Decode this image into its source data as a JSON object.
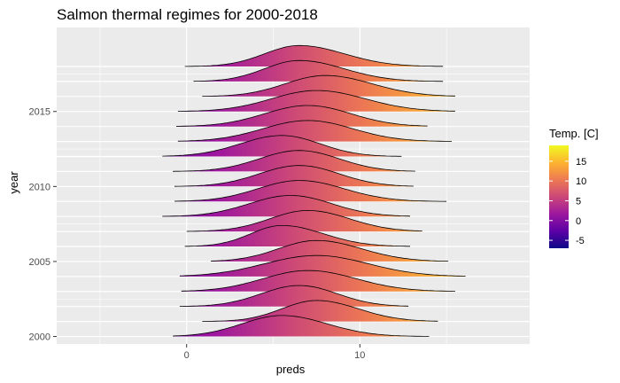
{
  "chart_data": {
    "type": "ridgeline",
    "title": "Salmon thermal regimes for 2000-2018",
    "xlabel": "preds",
    "ylabel": "year",
    "xlim": [
      -7.5,
      19.8
    ],
    "ylim": [
      1999.5,
      2020.6
    ],
    "x_ticks": [
      0,
      10
    ],
    "x_tick_labels": [
      "0",
      "10"
    ],
    "x_minor_ticks": [
      -5,
      5,
      15
    ],
    "y_ticks": [
      2000,
      2005,
      2010,
      2015
    ],
    "y_tick_labels": [
      "2000",
      "2005",
      "2010",
      "2015"
    ],
    "grid": true,
    "scale": 1.4,
    "legend": {
      "title": "Temp. [C]",
      "placement": "right",
      "min": -7,
      "max": 19,
      "ticks": [
        -5,
        0,
        5,
        10,
        15
      ],
      "tick_labels": [
        "-5",
        "0",
        "5",
        "10",
        "15"
      ]
    },
    "series": [
      {
        "year": 2000,
        "min": -0.8,
        "max": 14.0,
        "mode": 5.5,
        "sd_left": 2.3,
        "sd_right": 2.6
      },
      {
        "year": 2001,
        "min": 0.9,
        "max": 14.5,
        "mode": 7.5,
        "sd_left": 2.0,
        "sd_right": 2.4
      },
      {
        "year": 2002,
        "min": -0.4,
        "max": 12.8,
        "mode": 6.5,
        "sd_left": 2.2,
        "sd_right": 2.2
      },
      {
        "year": 2003,
        "min": -0.3,
        "max": 15.5,
        "mode": 7.0,
        "sd_left": 2.6,
        "sd_right": 2.8
      },
      {
        "year": 2004,
        "min": -0.4,
        "max": 16.1,
        "mode": 7.5,
        "sd_left": 3.0,
        "sd_right": 3.0
      },
      {
        "year": 2005,
        "min": 1.4,
        "max": 15.1,
        "mode": 7.5,
        "sd_left": 2.2,
        "sd_right": 2.6
      },
      {
        "year": 2006,
        "min": -0.1,
        "max": 12.9,
        "mode": 5.5,
        "sd_left": 1.8,
        "sd_right": 2.4
      },
      {
        "year": 2007,
        "min": 0.0,
        "max": 13.6,
        "mode": 7.0,
        "sd_left": 2.2,
        "sd_right": 2.4
      },
      {
        "year": 2008,
        "min": -1.4,
        "max": 12.9,
        "mode": 6.0,
        "sd_left": 2.4,
        "sd_right": 2.4
      },
      {
        "year": 2009,
        "min": -0.7,
        "max": 15.0,
        "mode": 6.5,
        "sd_left": 2.4,
        "sd_right": 2.6
      },
      {
        "year": 2010,
        "min": -0.7,
        "max": 13.1,
        "mode": 6.5,
        "sd_left": 2.3,
        "sd_right": 2.3
      },
      {
        "year": 2011,
        "min": -0.8,
        "max": 13.2,
        "mode": 6.5,
        "sd_left": 2.3,
        "sd_right": 2.3
      },
      {
        "year": 2012,
        "min": -1.4,
        "max": 12.4,
        "mode": 5.5,
        "sd_left": 2.4,
        "sd_right": 2.2
      },
      {
        "year": 2013,
        "min": -0.5,
        "max": 15.3,
        "mode": 7.0,
        "sd_left": 2.6,
        "sd_right": 2.6
      },
      {
        "year": 2014,
        "min": -0.6,
        "max": 13.9,
        "mode": 7.0,
        "sd_left": 2.5,
        "sd_right": 2.5
      },
      {
        "year": 2015,
        "min": -0.5,
        "max": 15.5,
        "mode": 7.5,
        "sd_left": 2.6,
        "sd_right": 2.8
      },
      {
        "year": 2016,
        "min": 0.9,
        "max": 15.5,
        "mode": 8.0,
        "sd_left": 2.3,
        "sd_right": 2.7
      },
      {
        "year": 2017,
        "min": 0.4,
        "max": 14.8,
        "mode": 6.5,
        "sd_left": 2.0,
        "sd_right": 2.6
      },
      {
        "year": 2018,
        "min": -0.1,
        "max": 14.8,
        "mode": 6.5,
        "sd_left": 2.0,
        "sd_right": 2.6
      }
    ]
  },
  "colors": {
    "panel_background": "#ebebeb",
    "grid": "#ffffff",
    "ridge_outline": "#000000",
    "colormap_plasma": [
      "#0d0887",
      "#5c01a6",
      "#9c179e",
      "#cc4778",
      "#ed7953",
      "#fdb42f",
      "#f0f921"
    ]
  }
}
